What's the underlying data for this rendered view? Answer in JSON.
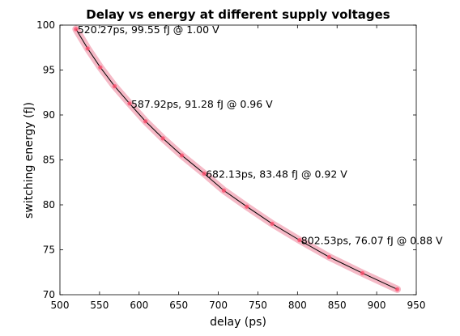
{
  "chart_data": {
    "type": "line",
    "title": "Delay vs energy at different supply voltages",
    "xlabel": "delay (ps)",
    "ylabel": "switching energy (fJ)",
    "xlim": [
      500,
      950
    ],
    "ylim": [
      70,
      100
    ],
    "x_ticks": [
      500,
      550,
      600,
      650,
      700,
      750,
      800,
      850,
      900,
      950
    ],
    "y_ticks": [
      70,
      75,
      80,
      85,
      90,
      95,
      100
    ],
    "grid": false,
    "legend": "none",
    "colors": {
      "line": "#000000",
      "marker": "#ff4d6d",
      "band": "#f2a7b8",
      "axes": "#000000"
    },
    "series": [
      {
        "x": [
          520.27,
          535,
          551,
          569,
          587.92,
          608,
          630,
          654,
          682.13,
          707,
          736,
          768,
          802.53,
          840,
          882,
          926
        ],
        "y": [
          99.55,
          97.4,
          95.3,
          93.2,
          91.28,
          89.3,
          87.4,
          85.5,
          83.48,
          81.6,
          79.8,
          77.9,
          76.07,
          74.2,
          72.4,
          70.6
        ]
      }
    ],
    "annotations": [
      {
        "text": "520.27ps, 99.55 fJ @ 1.00 V",
        "x": 520.27,
        "y": 99.55
      },
      {
        "text": "587.92ps, 91.28 fJ @ 0.96 V",
        "x": 587.92,
        "y": 91.28
      },
      {
        "text": "682.13ps, 83.48 fJ @ 0.92 V",
        "x": 682.13,
        "y": 83.48
      },
      {
        "text": "802.53ps, 76.07 fJ @ 0.88 V",
        "x": 802.53,
        "y": 76.07
      }
    ]
  }
}
